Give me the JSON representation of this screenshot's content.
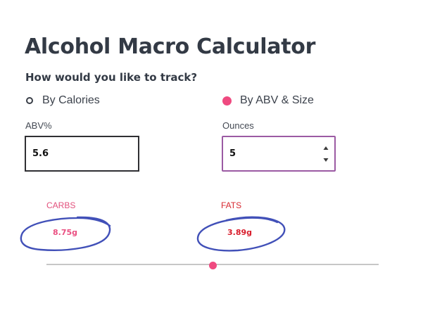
{
  "page": {
    "title": "Alcohol Macro Calculator",
    "subtitle": "How would you like to track?"
  },
  "mode": {
    "options": [
      {
        "label": "By Calories",
        "selected": false
      },
      {
        "label": "By ABV & Size",
        "selected": true
      }
    ]
  },
  "inputs": {
    "abv": {
      "label": "ABV%",
      "value": "5.6"
    },
    "ounces": {
      "label": "Ounces",
      "value": "5"
    }
  },
  "results": {
    "carbs": {
      "label": "CARBS",
      "value": "8.75g"
    },
    "fats": {
      "label": "FATS",
      "value": "3.89g"
    }
  },
  "slider": {
    "fraction": 0.5
  },
  "colors": {
    "accent": "#ef4a80",
    "carbs": "#ea4f81",
    "fats": "#d81c2b",
    "scribble": "#4150b8"
  }
}
